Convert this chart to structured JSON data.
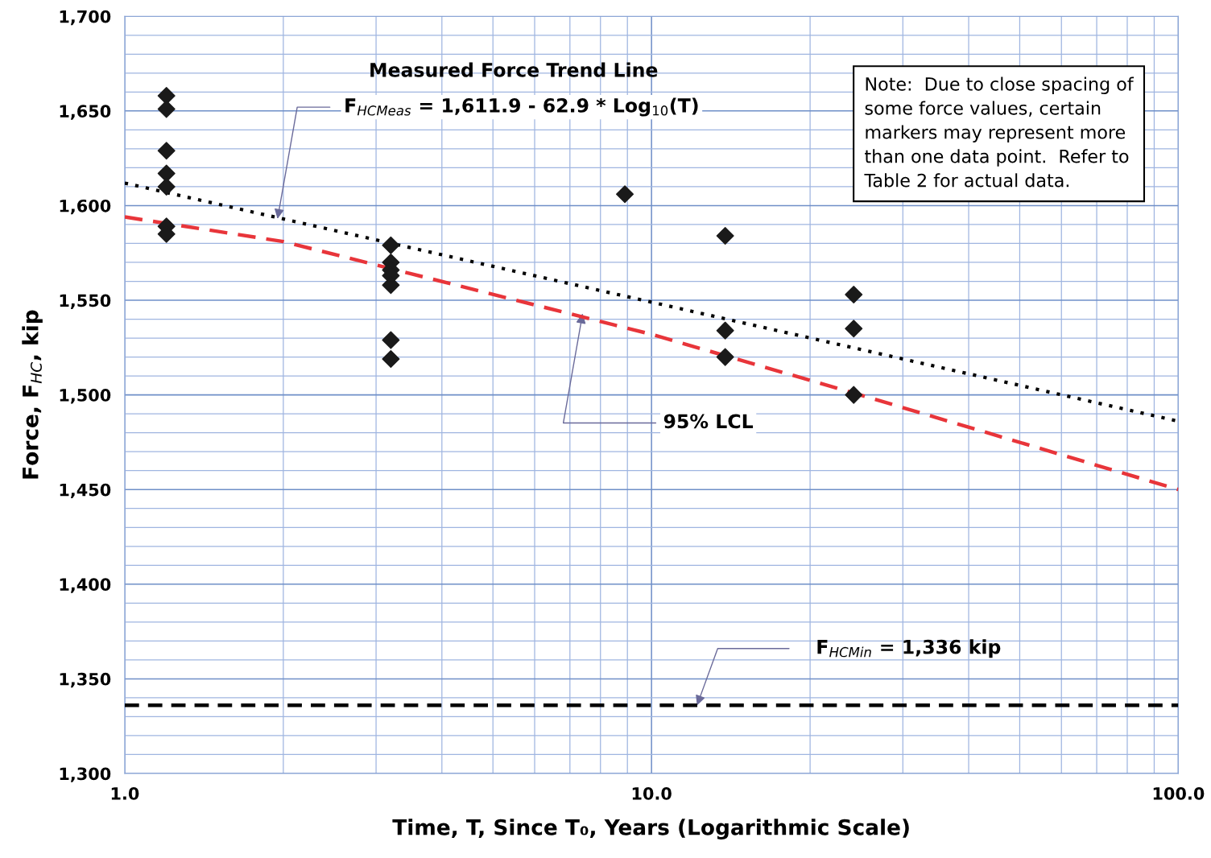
{
  "chart_data": {
    "type": "scatter",
    "xlabel": "Time, T, Since T₀, Years (Logarithmic Scale)",
    "ylabel": "Force, F$_{HC}$, kip",
    "log": "x",
    "xlim": [
      1,
      100
    ],
    "ylim": [
      1300,
      1700
    ],
    "xticks": [
      {
        "value": 1,
        "label": "1.0"
      },
      {
        "value": 2,
        "label": null
      },
      {
        "value": 3,
        "label": null
      },
      {
        "value": 4,
        "label": null
      },
      {
        "value": 5,
        "label": null
      },
      {
        "value": 6,
        "label": null
      },
      {
        "value": 7,
        "label": null
      },
      {
        "value": 8,
        "label": null
      },
      {
        "value": 9,
        "label": null
      },
      {
        "value": 10,
        "label": "10.0"
      },
      {
        "value": 20,
        "label": null
      },
      {
        "value": 30,
        "label": null
      },
      {
        "value": 40,
        "label": null
      },
      {
        "value": 50,
        "label": null
      },
      {
        "value": 60,
        "label": null
      },
      {
        "value": 70,
        "label": null
      },
      {
        "value": 80,
        "label": null
      },
      {
        "value": 90,
        "label": null
      },
      {
        "value": 100,
        "label": "100.0"
      }
    ],
    "yticks": [
      {
        "value": 1300,
        "label": "1,300"
      },
      {
        "value": 1310,
        "label": null
      },
      {
        "value": 1320,
        "label": null
      },
      {
        "value": 1330,
        "label": null
      },
      {
        "value": 1340,
        "label": null
      },
      {
        "value": 1350,
        "label": "1,350"
      },
      {
        "value": 1360,
        "label": null
      },
      {
        "value": 1370,
        "label": null
      },
      {
        "value": 1380,
        "label": null
      },
      {
        "value": 1390,
        "label": null
      },
      {
        "value": 1400,
        "label": "1,400"
      },
      {
        "value": 1410,
        "label": null
      },
      {
        "value": 1420,
        "label": null
      },
      {
        "value": 1430,
        "label": null
      },
      {
        "value": 1440,
        "label": null
      },
      {
        "value": 1450,
        "label": "1,450"
      },
      {
        "value": 1460,
        "label": null
      },
      {
        "value": 1470,
        "label": null
      },
      {
        "value": 1480,
        "label": null
      },
      {
        "value": 1490,
        "label": null
      },
      {
        "value": 1500,
        "label": "1,500"
      },
      {
        "value": 1510,
        "label": null
      },
      {
        "value": 1520,
        "label": null
      },
      {
        "value": 1530,
        "label": null
      },
      {
        "value": 1540,
        "label": null
      },
      {
        "value": 1550,
        "label": "1,550"
      },
      {
        "value": 1560,
        "label": null
      },
      {
        "value": 1570,
        "label": null
      },
      {
        "value": 1580,
        "label": null
      },
      {
        "value": 1590,
        "label": null
      },
      {
        "value": 1600,
        "label": "1,600"
      },
      {
        "value": 1610,
        "label": null
      },
      {
        "value": 1620,
        "label": null
      },
      {
        "value": 1630,
        "label": null
      },
      {
        "value": 1640,
        "label": null
      },
      {
        "value": 1650,
        "label": "1,650"
      },
      {
        "value": 1660,
        "label": null
      },
      {
        "value": 1670,
        "label": null
      },
      {
        "value": 1680,
        "label": null
      },
      {
        "value": 1690,
        "label": null
      },
      {
        "value": 1700,
        "label": "1,700"
      }
    ],
    "grid": true,
    "legend": false,
    "series": [
      {
        "color": "#1a1a1a",
        "marker": "diamond",
        "x": [
          1.2,
          1.2,
          1.2,
          1.2,
          1.2,
          1.2,
          1.2,
          3.2,
          3.2,
          3.2,
          3.2,
          3.2,
          3.2,
          3.2,
          8.9,
          13.8,
          13.8,
          13.8,
          24.2,
          24.2,
          24.2
        ],
        "values": [
          1658,
          1651,
          1629,
          1617,
          1610,
          1589,
          1585,
          1579,
          1570,
          1566,
          1563,
          1558,
          1529,
          1519,
          1606,
          1584,
          1534,
          1520,
          1553,
          1535,
          1500
        ]
      },
      {
        "type": "line",
        "color": "#000000",
        "line_style": "dotted",
        "x": [
          1,
          100
        ],
        "values": [
          1611.9,
          1486.1
        ]
      },
      {
        "type": "line",
        "color": "#e8353a",
        "line_style": "dashed",
        "x": [
          1,
          2,
          10,
          24.2,
          100
        ],
        "values": [
          1594,
          1581,
          1532,
          1501,
          1450
        ]
      }
    ],
    "ref_lines": [
      {
        "axis": "y",
        "value": 1336,
        "label": "F$_{HCMin}$ = 1,336 kip",
        "color": "#000000",
        "line_style": "dashed"
      }
    ],
    "annotations": [
      "Measured Force Trend Line",
      {
        "text": "F$_{HCMeas}$ = 1,611.9 - 62.9 * Log$_{10}$(T)",
        "x": 1.95,
        "y": 1593
      },
      {
        "text": "95% LCL",
        "x": 7.4,
        "y": 1543
      },
      "Note:  Due to close spacing of\nsome force values, certain\nmarkers may represent more\nthan one data point.  Refer to\nTable 2 for actual data."
    ]
  }
}
